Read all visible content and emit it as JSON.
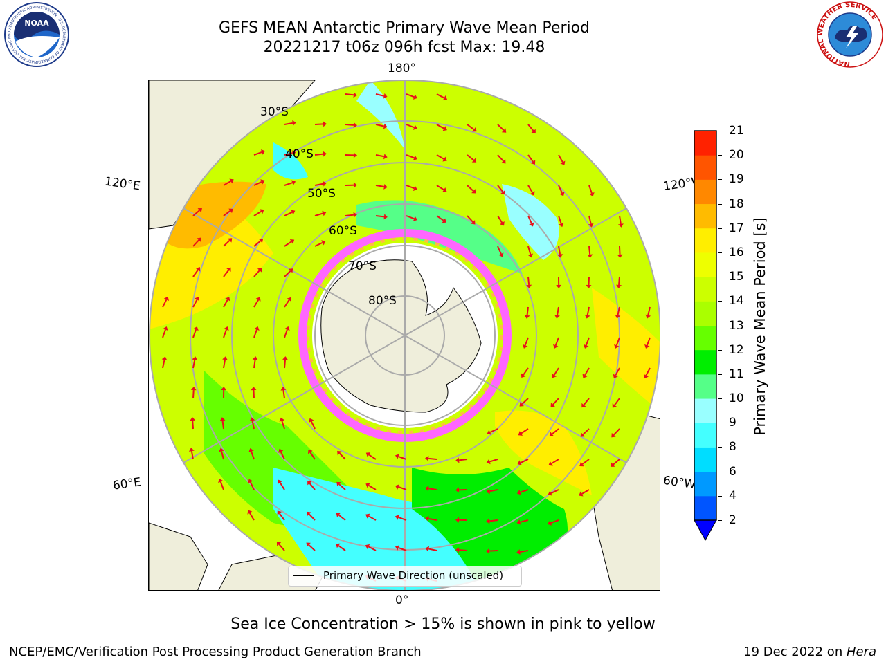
{
  "title": {
    "line1": "GEFS MEAN Antarctic Primary Wave Mean Period",
    "line2": "20221217 t06z 096h fcst   Max: 19.48"
  },
  "longitude_labels": {
    "top": "180°",
    "bottom": "0°",
    "upper_left": "120°E",
    "upper_right": "120°W",
    "lower_left": "60°E",
    "lower_right": "60°W"
  },
  "latitude_labels": [
    "30°S",
    "40°S",
    "50°S",
    "60°S",
    "70°S",
    "80°S"
  ],
  "legend": {
    "label": "Primary Wave Direction (unscaled)"
  },
  "colorbar": {
    "label": "Primary Wave Mean Period [s]",
    "ticks": [
      "2",
      "4",
      "6",
      "8",
      "9",
      "10",
      "11",
      "12",
      "13",
      "14",
      "15",
      "16",
      "17",
      "18",
      "19",
      "20",
      "21"
    ],
    "colors": [
      "#0055ff",
      "#0099ff",
      "#00ddff",
      "#44ffff",
      "#99ffff",
      "#55ff88",
      "#00ee00",
      "#66ff00",
      "#aaff00",
      "#ccff00",
      "#eeff00",
      "#ffee00",
      "#ffbb00",
      "#ff8800",
      "#ff5500",
      "#ff2200"
    ],
    "extend_color": "#0000ff"
  },
  "note": "Sea Ice Concentration > 15% is shown in pink to yellow",
  "footer": {
    "left": "NCEP/EMC/Verification Post Processing Product Generation Branch",
    "right_prefix": "19 Dec 2022 on ",
    "right_host": "Hera"
  },
  "logos": {
    "left_text": "NOAA",
    "left_ring_text": "NATIONAL OCEANIC AND ATMOSPHERIC ADMINISTRATION · U.S. DEPARTMENT OF COMMERCE",
    "right_ring_text": "NATIONAL WEATHER SERVICE"
  }
}
